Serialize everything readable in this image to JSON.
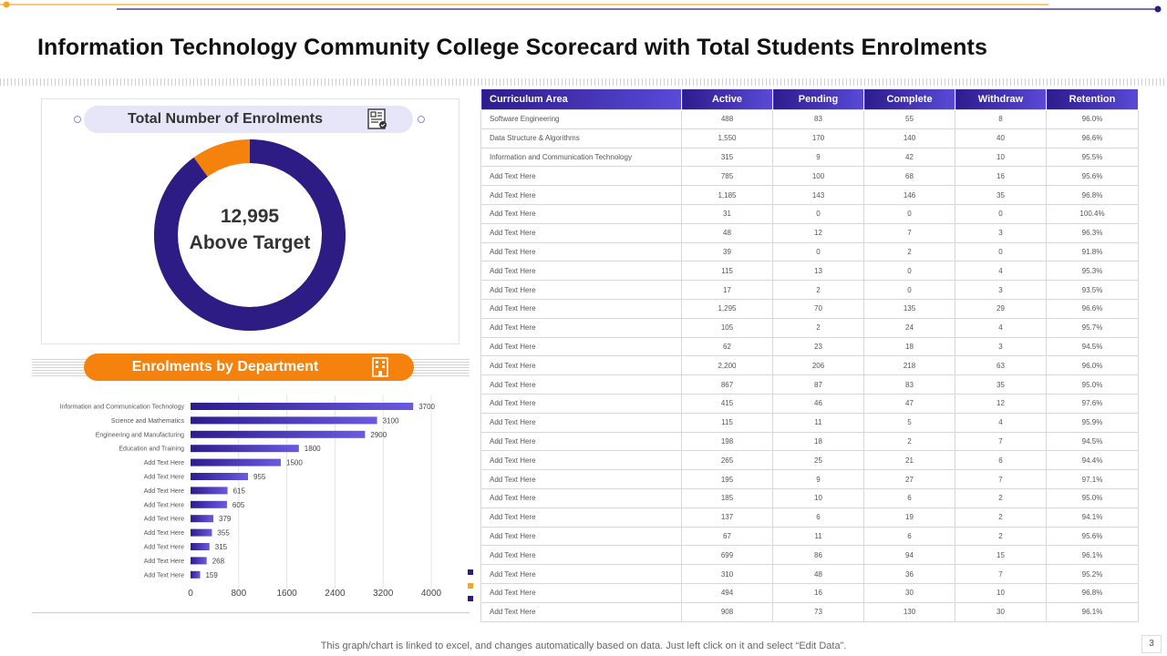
{
  "title": "Information Technology Community College Scorecard with Total Students Enrolments",
  "enrolment_card": {
    "title": "Total Number of Enrolments",
    "icon": "certificate-icon",
    "value": "12,995",
    "caption": "Above Target",
    "donut_fraction_primary": 0.9,
    "colors": {
      "primary": "#2c1c84",
      "secondary": "#f5820c"
    }
  },
  "department_title": "Enrolments by Department",
  "department_icon": "building-icon",
  "chart_data": {
    "type": "bar",
    "orientation": "horizontal",
    "title": "Enrolments by Department",
    "categories": [
      "Information and Communication Technology",
      "Science and Mathematics",
      "Engineering and Manufacturing",
      "Education and Training",
      "Add Text Here",
      "Add Text Here",
      "Add Text Here",
      "Add Text Here",
      "Add Text Here",
      "Add Text Here",
      "Add Text Here",
      "Add Text Here",
      "Add Text Here"
    ],
    "values": [
      3700,
      3100,
      2900,
      1800,
      1500,
      955,
      615,
      605,
      379,
      355,
      315,
      268,
      159
    ],
    "xlim": [
      0,
      4000
    ],
    "xticks": [
      0,
      800,
      1600,
      2400,
      3200,
      4000
    ],
    "grid": true,
    "bar_color_start": "#2c1c8c",
    "bar_color_end": "#6a5ae0"
  },
  "table": {
    "headers": [
      "Curriculum Area",
      "Active",
      "Pending",
      "Complete",
      "Withdraw",
      "Retention"
    ],
    "rows": [
      [
        "Software  Engineering",
        "488",
        "83",
        "55",
        "8",
        "96.0%"
      ],
      [
        "Data Structure  & Algorithms",
        "1,550",
        "170",
        "140",
        "40",
        "96.6%"
      ],
      [
        "Information  and Communication  Technology",
        "315",
        "9",
        "42",
        "10",
        "95.5%"
      ],
      [
        "Add Text  Here",
        "785",
        "100",
        "68",
        "16",
        "95.6%"
      ],
      [
        "Add Text  Here",
        "1,185",
        "143",
        "146",
        "35",
        "96.8%"
      ],
      [
        "Add Text  Here",
        "31",
        "0",
        "0",
        "0",
        "100.4%"
      ],
      [
        "Add Text  Here",
        "48",
        "12",
        "7",
        "3",
        "96.3%"
      ],
      [
        "Add Text  Here",
        "39",
        "0",
        "2",
        "0",
        "91.8%"
      ],
      [
        "Add Text  Here",
        "115",
        "13",
        "0",
        "4",
        "95.3%"
      ],
      [
        "Add Text  Here",
        "17",
        "2",
        "0",
        "3",
        "93.5%"
      ],
      [
        "Add Text  Here",
        "1,295",
        "70",
        "135",
        "29",
        "96.6%"
      ],
      [
        "Add Text  Here",
        "105",
        "2",
        "24",
        "4",
        "95.7%"
      ],
      [
        "Add Text  Here",
        "62",
        "23",
        "18",
        "3",
        "94.5%"
      ],
      [
        "Add Text  Here",
        "2,200",
        "206",
        "218",
        "63",
        "96.0%"
      ],
      [
        "Add Text  Here",
        "867",
        "87",
        "83",
        "35",
        "95.0%"
      ],
      [
        "Add Text  Here",
        "415",
        "46",
        "47",
        "12",
        "97.6%"
      ],
      [
        "Add Text  Here",
        "115",
        "11",
        "5",
        "4",
        "95.9%"
      ],
      [
        "Add Text  Here",
        "198",
        "18",
        "2",
        "7",
        "94.5%"
      ],
      [
        "Add Text  Here",
        "265",
        "25",
        "21",
        "6",
        "94.4%"
      ],
      [
        "Add Text  Here",
        "195",
        "9",
        "27",
        "7",
        "97.1%"
      ],
      [
        "Add Text  Here",
        "185",
        "10",
        "6",
        "2",
        "95.0%"
      ],
      [
        "Add Text  Here",
        "137",
        "6",
        "19",
        "2",
        "94.1%"
      ],
      [
        "Add Text  Here",
        "67",
        "11",
        "6",
        "2",
        "95.6%"
      ],
      [
        "Add Text  Here",
        "699",
        "86",
        "94",
        "15",
        "96.1%"
      ],
      [
        "Add Text  Here",
        "310",
        "48",
        "36",
        "7",
        "95.2%"
      ],
      [
        "Add Text  Here",
        "494",
        "16",
        "30",
        "10",
        "96.8%"
      ],
      [
        "Add Text  Here",
        "908",
        "73",
        "130",
        "30",
        "96.1%"
      ]
    ]
  },
  "footer": "This graph/chart is linked to excel,  and changes automatically based on data. Just left click on it and select “Edit Data”.",
  "page_number": "3",
  "colors": {
    "accent_orange": "#f5820c",
    "accent_navy": "#2c1c84",
    "header_start": "#2c1c8c",
    "header_end": "#5a4ad8"
  }
}
